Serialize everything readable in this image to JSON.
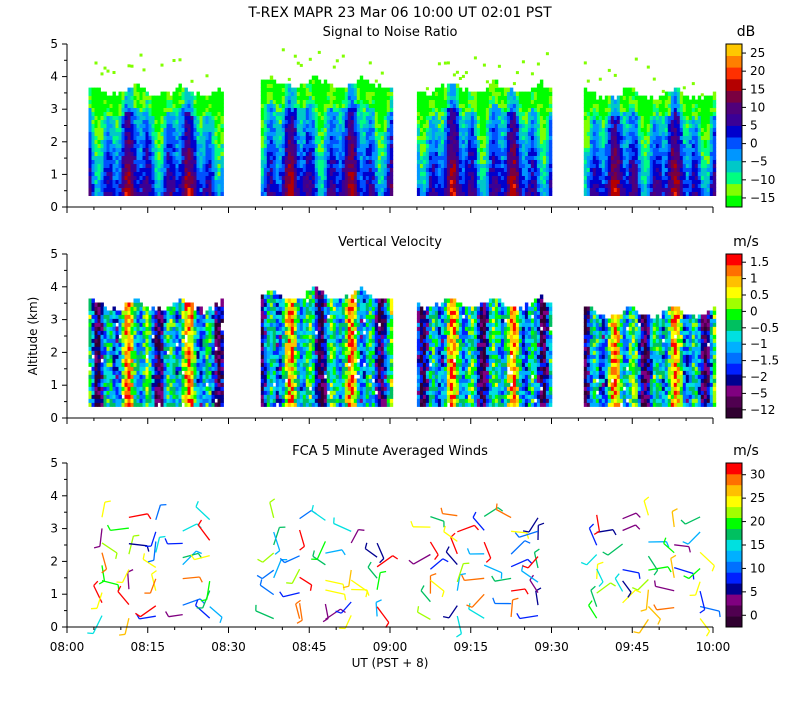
{
  "header": {
    "title": "T-REX   MAPR 23 Mar 06   10:00 UT   02:01   PST"
  },
  "chart_data": [
    {
      "type": "heatmap",
      "title": "Signal to Noise Ratio",
      "ylabel": "",
      "ylim": [
        0,
        5
      ],
      "y_ticks": [
        "0",
        "1",
        "2",
        "3",
        "4",
        "5"
      ],
      "colorbar_unit": "dB",
      "colorbar_labels": [
        "25",
        "20",
        "15",
        "10",
        "5",
        "0",
        "−5",
        "−10",
        "−15"
      ],
      "colors": [
        "#00FF00",
        "#80FF00",
        "#00FF80",
        "#00C8C8",
        "#0096FF",
        "#0050FF",
        "#0000CD",
        "#3A0096",
        "#50007A",
        "#7A0040",
        "#B40000",
        "#FF3000",
        "#FF8000",
        "#FFC800"
      ],
      "segments": [
        [
          "08:04",
          "08:29"
        ],
        [
          "08:36",
          "09:00"
        ],
        [
          "09:05",
          "09:30"
        ],
        [
          "09:36",
          "10:00"
        ]
      ],
      "top_km": [
        3.9,
        4.15,
        4.0,
        3.8
      ]
    },
    {
      "type": "heatmap",
      "title": "Vertical Velocity",
      "ylabel": "Altitude (km)",
      "ylim": [
        0,
        5
      ],
      "y_ticks": [
        "0",
        "1",
        "2",
        "3",
        "4",
        "5"
      ],
      "colorbar_unit": "m/s",
      "colorbar_labels": [
        "1.5",
        "1",
        "0.5",
        "0",
        "−0.5",
        "−1",
        "−1.5",
        "−2",
        "−5",
        "−12"
      ],
      "colors": [
        "#300030",
        "#500050",
        "#800080",
        "#000090",
        "#0020FF",
        "#0070FF",
        "#00B0FF",
        "#00E0E0",
        "#00C060",
        "#00FF00",
        "#A0FF00",
        "#FFFF00",
        "#FFC000",
        "#FF7000",
        "#FF0000"
      ],
      "segments": [
        [
          "08:04",
          "08:29"
        ],
        [
          "08:36",
          "09:00"
        ],
        [
          "09:05",
          "09:30"
        ],
        [
          "09:36",
          "10:00"
        ]
      ],
      "top_km": [
        3.8,
        4.1,
        3.85,
        3.6
      ]
    },
    {
      "type": "scatter",
      "title": "FCA 5 Minute Averaged Winds",
      "ylabel": "",
      "ylim": [
        0,
        5
      ],
      "y_ticks": [
        "0",
        "1",
        "2",
        "3",
        "4",
        "5"
      ],
      "colorbar_unit": "m/s",
      "colorbar_labels": [
        "30",
        "25",
        "20",
        "15",
        "10",
        "5",
        "0"
      ],
      "colors": [
        "#300030",
        "#500050",
        "#800080",
        "#000090",
        "#0020FF",
        "#0070FF",
        "#00B0FF",
        "#00E0E0",
        "#00C060",
        "#00FF00",
        "#A0FF00",
        "#FFFF00",
        "#FFC000",
        "#FF7000",
        "#FF0000"
      ],
      "segments": [
        [
          "08:04",
          "08:29"
        ],
        [
          "08:36",
          "09:00"
        ],
        [
          "09:05",
          "09:30"
        ],
        [
          "09:36",
          "10:00"
        ]
      ],
      "xlabel": "UT  (PST + 8)",
      "x_ticks": [
        "08:00",
        "08:15",
        "08:30",
        "08:45",
        "09:00",
        "09:15",
        "09:30",
        "09:45",
        "10:00"
      ],
      "xlim": [
        "08:00",
        "10:00"
      ]
    }
  ]
}
